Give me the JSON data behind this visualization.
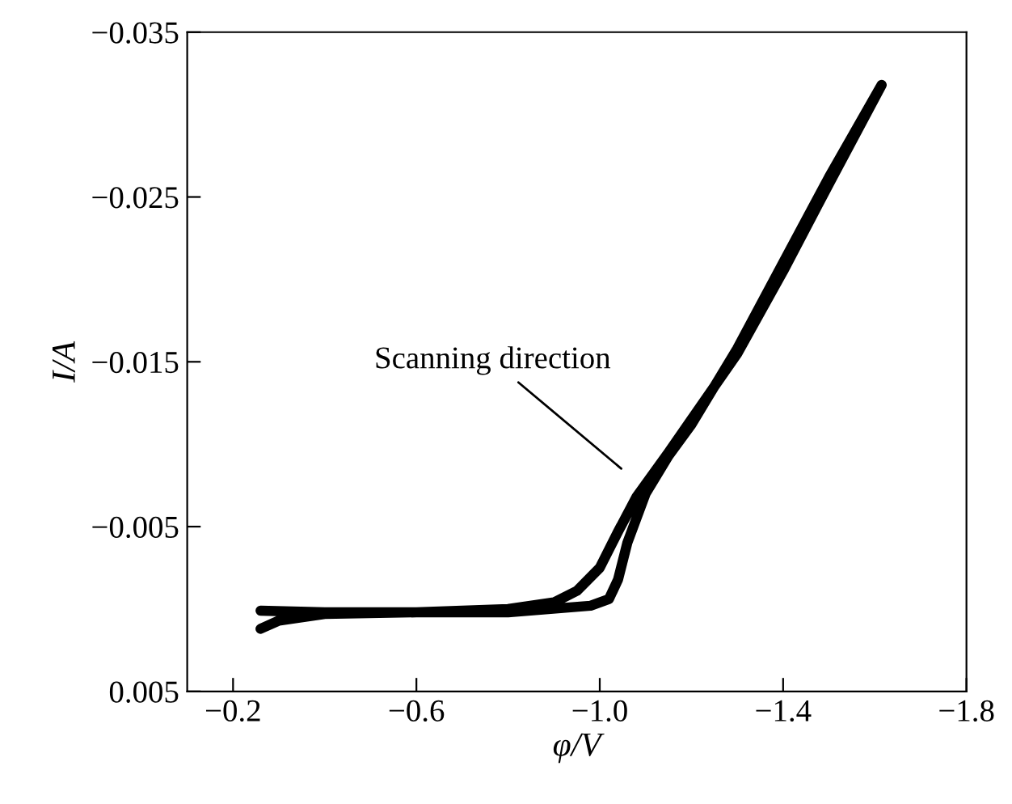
{
  "chart_data": {
    "type": "line",
    "xlabel": "φ/V",
    "ylabel": "I/A",
    "series": [
      {
        "color": "#000000",
        "x": [
          -0.26,
          -0.4,
          -0.6,
          -0.8,
          -0.9,
          -0.95,
          -1.0,
          -1.04,
          -1.08,
          -1.15,
          -1.2,
          -1.3,
          -1.4,
          -1.5,
          -1.615,
          -1.5,
          -1.4,
          -1.3,
          -1.2,
          -1.15,
          -1.1,
          -1.06,
          -1.04,
          -1.02,
          -0.98,
          -0.8,
          -0.6,
          -0.4,
          -0.3,
          -0.26
        ],
        "values": [
          0.0001,
          0.0002,
          0.0002,
          0.0,
          -0.0004,
          -0.0011,
          -0.0025,
          -0.0047,
          -0.0068,
          -0.0095,
          -0.0115,
          -0.0155,
          -0.0205,
          -0.0258,
          -0.0318,
          -0.0262,
          -0.021,
          -0.0158,
          -0.0112,
          -0.0093,
          -0.007,
          -0.004,
          -0.0018,
          -0.0006,
          -0.0002,
          0.0002,
          0.0002,
          0.0003,
          0.0007,
          0.0012
        ]
      }
    ],
    "xlim": [
      -0.1,
      -1.8
    ],
    "xticks": [
      {
        "value": -0.2,
        "label": "−0.2"
      },
      {
        "value": -0.6,
        "label": "−0.6"
      },
      {
        "value": -1.0,
        "label": "−1.0"
      },
      {
        "value": -1.4,
        "label": "−1.4"
      },
      {
        "value": -1.8,
        "label": "−1.8"
      }
    ],
    "ylim": [
      0.005,
      -0.035
    ],
    "yticks": [
      {
        "value": 0.005,
        "label": "0.005"
      },
      {
        "value": -0.005,
        "label": "−0.005"
      },
      {
        "value": -0.015,
        "label": "−0.015"
      },
      {
        "value": -0.025,
        "label": "−0.025"
      },
      {
        "value": -0.035,
        "label": "−0.035"
      }
    ],
    "annotations": [
      "Scanning direction"
    ],
    "grid": false,
    "legend": false,
    "marker": "none",
    "line_style": "solid"
  }
}
